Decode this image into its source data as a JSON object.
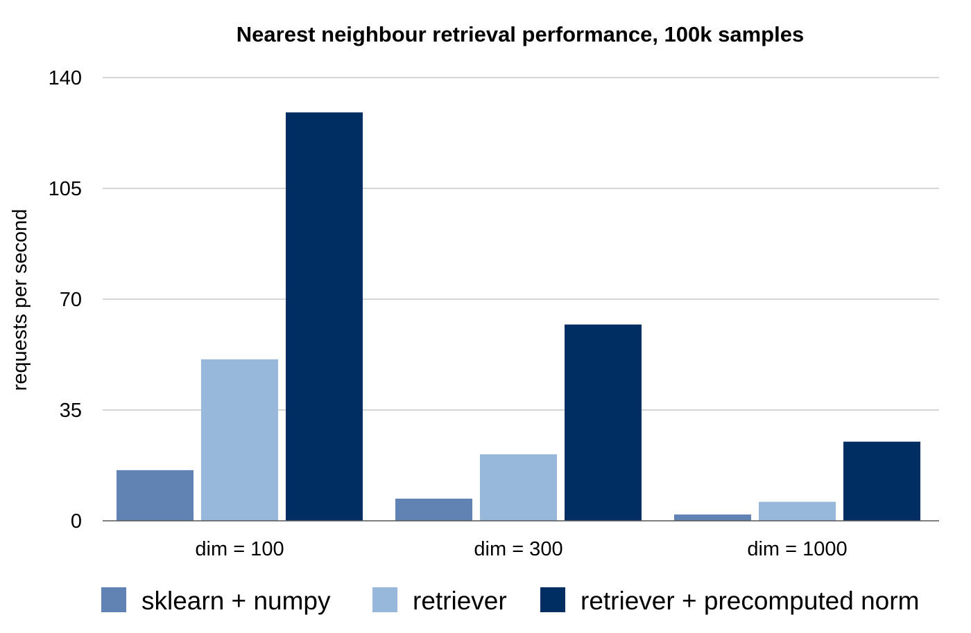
{
  "chart_data": {
    "type": "bar",
    "title": "Nearest neighbour retrieval performance, 100k samples",
    "xlabel": "",
    "ylabel": "requests per second",
    "ylim": [
      0,
      140
    ],
    "yticks": [
      0,
      35,
      70,
      105,
      140
    ],
    "grid": true,
    "legend_position": "bottom",
    "categories": [
      "dim = 100",
      "dim = 300",
      "dim = 1000"
    ],
    "series": [
      {
        "name": "sklearn + numpy",
        "color": "#6083b3",
        "values": [
          16,
          7,
          2
        ]
      },
      {
        "name": "retriever",
        "color": "#97b8da",
        "values": [
          51,
          21,
          6
        ]
      },
      {
        "name": "retriever + precomputed norm",
        "color": "#002d62",
        "values": [
          129,
          62,
          25
        ]
      }
    ]
  }
}
